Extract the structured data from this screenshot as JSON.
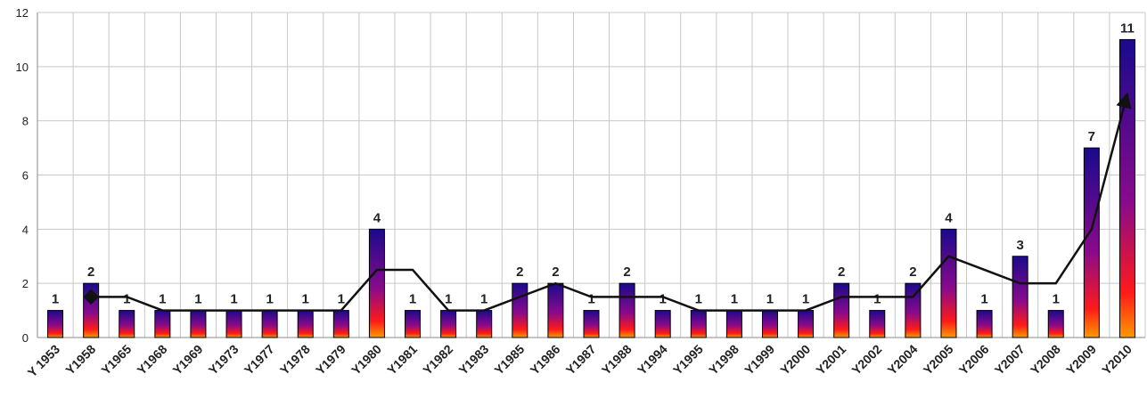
{
  "chart_data": {
    "type": "bar",
    "categories": [
      "Y 1953",
      "Y1958",
      "Y1965",
      "Y1968",
      "Y1969",
      "Y1973",
      "Y1977",
      "Y1978",
      "Y1979",
      "Y1980",
      "Y1981",
      "Y1982",
      "Y1983",
      "Y1985",
      "Y1986",
      "Y1987",
      "Y1988",
      "Y1994",
      "Y1995",
      "Y1998",
      "Y1999",
      "Y2000",
      "Y2001",
      "Y2002",
      "Y2004",
      "Y2005",
      "Y2006",
      "Y2007",
      "Y2008",
      "Y2009",
      "Y2010"
    ],
    "values": [
      1,
      2,
      1,
      1,
      1,
      1,
      1,
      1,
      1,
      4,
      1,
      1,
      1,
      2,
      2,
      1,
      2,
      1,
      1,
      1,
      1,
      1,
      2,
      1,
      2,
      4,
      1,
      3,
      1,
      7,
      11
    ],
    "colors": [
      "#1a0a8c",
      "#8a0a8c",
      "#ff1a1a",
      "#ff9900"
    ],
    "trend": {
      "color": "#111111",
      "values": [
        null,
        1.5,
        1.5,
        1,
        1,
        1,
        1,
        1,
        1,
        2.5,
        2.5,
        1,
        1,
        1.5,
        2,
        1.5,
        1.5,
        1.5,
        1,
        1,
        1,
        1,
        1.5,
        1.5,
        1.5,
        3,
        2.5,
        2,
        2,
        4,
        9
      ]
    },
    "ylim": [
      0,
      12
    ],
    "yticks": [
      0,
      2,
      4,
      6,
      8,
      10,
      12
    ],
    "grid": true
  }
}
